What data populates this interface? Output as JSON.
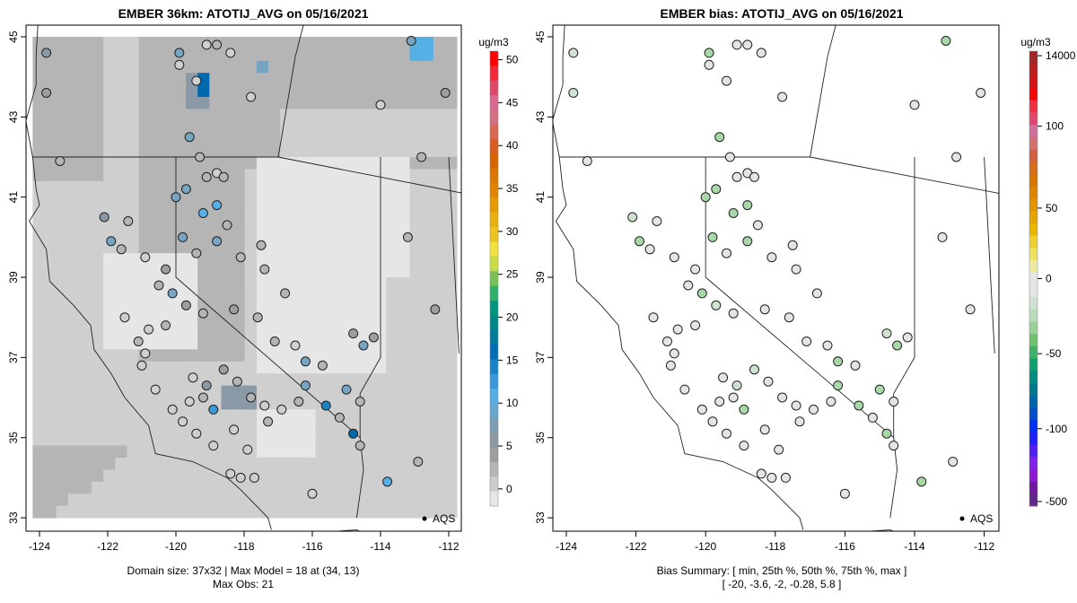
{
  "left_panel": {
    "title": "EMBER 36km: ATOTIJ_AVG on 05/16/2021",
    "colorbar_unit": "ug/m3",
    "colorbar_ticks": [
      "50",
      "45",
      "40",
      "35",
      "30",
      "25",
      "20",
      "15",
      "10",
      "5",
      "0"
    ],
    "colorbar_tick_values": [
      50,
      45,
      40,
      35,
      30,
      25,
      20,
      15,
      10,
      5,
      0
    ],
    "colorbar_range": [
      -2,
      51
    ],
    "footer_line1": "Domain size: 37x32 | Max Model = 18 at (34, 13)",
    "footer_line2": "Max Obs: 21",
    "legend_label": "AQS"
  },
  "right_panel": {
    "title": "EMBER bias: ATOTIJ_AVG on 05/16/2021",
    "colorbar_unit": "ug/m3",
    "colorbar_ticks": [
      "14000",
      "100",
      "50",
      "0",
      "-50",
      "-100",
      "-500"
    ],
    "footer_line1": "Bias Summary: [ min, 25th %, 50th %, 75th %, max ]",
    "footer_line2": "[ -20,   -3.6,   -2,   -0.28,   5.8 ]",
    "legend_label": "AQS"
  },
  "axes": {
    "x_ticks": [
      "-124",
      "-122",
      "-120",
      "-118",
      "-116",
      "-114",
      "-112"
    ],
    "x_values": [
      -124,
      -122,
      -120,
      -118,
      -116,
      -114,
      -112
    ],
    "y_ticks": [
      "45",
      "43",
      "41",
      "39",
      "37",
      "35",
      "33"
    ],
    "y_values": [
      45,
      43,
      41,
      39,
      37,
      35,
      33
    ]
  },
  "chart_data": {
    "type": "map",
    "xlim": [
      -124.2,
      -111.7
    ],
    "ylim": [
      32.7,
      45.3
    ],
    "sites": [
      [
        -123.8,
        44.6,
        8
      ],
      [
        -123.8,
        43.6,
        6
      ],
      [
        -123.4,
        41.9,
        4
      ],
      [
        -122.1,
        40.5,
        8
      ],
      [
        -121.4,
        40.4,
        3
      ],
      [
        -119.9,
        44.6,
        10
      ],
      [
        -119.9,
        44.3,
        2
      ],
      [
        -119.1,
        44.8,
        2
      ],
      [
        -118.8,
        44.8,
        3
      ],
      [
        -118.4,
        44.6,
        1
      ],
      [
        -119.4,
        43.9,
        2
      ],
      [
        -117.8,
        43.5,
        2
      ],
      [
        -119.6,
        42.5,
        10
      ],
      [
        -119.3,
        42.0,
        3
      ],
      [
        -118.8,
        41.6,
        2
      ],
      [
        -120.0,
        41.0,
        10
      ],
      [
        -119.7,
        41.2,
        9
      ],
      [
        -119.1,
        41.5,
        4
      ],
      [
        -118.6,
        41.5,
        3
      ],
      [
        -119.2,
        40.6,
        12
      ],
      [
        -118.8,
        40.8,
        11
      ],
      [
        -118.5,
        40.3,
        3
      ],
      [
        -119.8,
        40.0,
        9
      ],
      [
        -119.4,
        39.6,
        3
      ],
      [
        -118.8,
        39.9,
        10
      ],
      [
        -118.1,
        39.5,
        3
      ],
      [
        -117.5,
        39.8,
        3
      ],
      [
        -117.4,
        39.2,
        4
      ],
      [
        -116.8,
        38.6,
        4
      ],
      [
        -121.9,
        39.9,
        10
      ],
      [
        -121.6,
        39.7,
        4
      ],
      [
        -120.9,
        39.5,
        2
      ],
      [
        -120.3,
        39.2,
        5
      ],
      [
        -120.5,
        38.8,
        3
      ],
      [
        -120.1,
        38.6,
        9
      ],
      [
        -119.7,
        38.3,
        6
      ],
      [
        -119.2,
        38.1,
        3
      ],
      [
        -118.3,
        38.2,
        5
      ],
      [
        -117.6,
        38.0,
        4
      ],
      [
        -117.1,
        37.4,
        4
      ],
      [
        -116.2,
        36.9,
        9
      ],
      [
        -115.7,
        36.8,
        3
      ],
      [
        -116.5,
        37.3,
        2
      ],
      [
        -116.2,
        36.3,
        9
      ],
      [
        -115.6,
        35.8,
        15
      ],
      [
        -115.2,
        35.5,
        3
      ],
      [
        -114.8,
        35.1,
        18
      ],
      [
        -114.6,
        34.8,
        3
      ],
      [
        -113.8,
        33.9,
        12
      ],
      [
        -112.9,
        34.4,
        3
      ],
      [
        -113.2,
        40.0,
        3
      ],
      [
        -112.4,
        38.2,
        5
      ],
      [
        -114.8,
        37.6,
        6
      ],
      [
        -114.5,
        37.3,
        9
      ],
      [
        -114.2,
        37.5,
        5
      ],
      [
        -115.0,
        36.2,
        9
      ],
      [
        -114.6,
        35.9,
        3
      ],
      [
        -116.4,
        35.9,
        4
      ],
      [
        -116.9,
        35.7,
        2
      ],
      [
        -117.3,
        35.4,
        3
      ],
      [
        -118.3,
        35.2,
        1
      ],
      [
        -117.9,
        34.7,
        1
      ],
      [
        -118.4,
        34.1,
        1
      ],
      [
        -118.1,
        34.0,
        2
      ],
      [
        -117.7,
        34.0,
        1
      ],
      [
        -116.0,
        33.6,
        1
      ],
      [
        -112.8,
        42.0,
        3
      ],
      [
        -112.1,
        43.6,
        5
      ],
      [
        -113.1,
        44.9,
        9
      ],
      [
        -114.0,
        43.3,
        2
      ],
      [
        -121.1,
        37.4,
        3
      ],
      [
        -120.9,
        37.1,
        2
      ],
      [
        -121.0,
        36.8,
        2
      ],
      [
        -120.6,
        36.2,
        1
      ],
      [
        -120.1,
        35.7,
        1
      ],
      [
        -119.8,
        35.4,
        1
      ],
      [
        -119.4,
        35.1,
        1
      ],
      [
        -118.9,
        34.8,
        2
      ],
      [
        -119.6,
        35.9,
        2
      ],
      [
        -119.1,
        36.3,
        8
      ],
      [
        -118.6,
        36.7,
        6
      ],
      [
        -118.2,
        36.4,
        4
      ],
      [
        -117.8,
        36.0,
        3
      ],
      [
        -117.4,
        35.8,
        2
      ],
      [
        -118.9,
        35.7,
        14
      ],
      [
        -119.2,
        36.0,
        3
      ],
      [
        -119.5,
        36.5,
        2
      ],
      [
        -121.5,
        38.0,
        2
      ],
      [
        -120.8,
        37.7,
        2
      ],
      [
        -120.3,
        37.8,
        4
      ]
    ]
  }
}
